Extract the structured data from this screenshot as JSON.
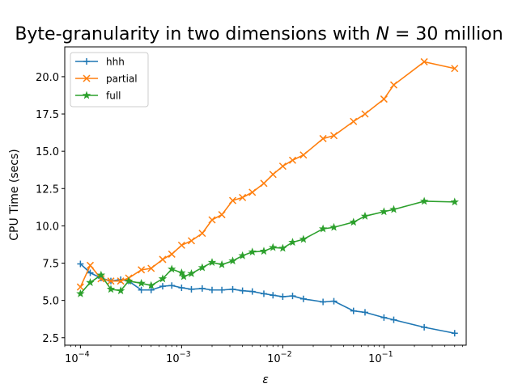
{
  "chart_data": {
    "type": "line",
    "title": "Byte-granularity in two dimensions with N = 30 million",
    "title_parts": {
      "prefix": "Byte-granularity in two dimensions with ",
      "var": "N",
      "suffix": " = 30 million"
    },
    "xlabel": "ε",
    "ylabel": "CPU Time (secs)",
    "xscale": "log",
    "xlim": [
      7e-05,
      0.65
    ],
    "ylim": [
      2.0,
      22.0
    ],
    "xticks": [
      {
        "value": 0.0001,
        "base": "10",
        "exp": "−4"
      },
      {
        "value": 0.001,
        "base": "10",
        "exp": "−3"
      },
      {
        "value": 0.01,
        "base": "10",
        "exp": "−2"
      },
      {
        "value": 0.1,
        "base": "10",
        "exp": "−1"
      }
    ],
    "yticks": [
      {
        "value": 2.5,
        "label": "2.5"
      },
      {
        "value": 5.0,
        "label": "5.0"
      },
      {
        "value": 7.5,
        "label": "7.5"
      },
      {
        "value": 10.0,
        "label": "10.0"
      },
      {
        "value": 12.5,
        "label": "12.5"
      },
      {
        "value": 15.0,
        "label": "15.0"
      },
      {
        "value": 17.5,
        "label": "17.5"
      },
      {
        "value": 20.0,
        "label": "20.0"
      }
    ],
    "grid": false,
    "legend_position": "top-left",
    "series": [
      {
        "name": "hhh",
        "color": "#1f77b4",
        "marker": "plus",
        "points": [
          [
            0.0001,
            7.45
          ],
          [
            0.000125,
            6.85
          ],
          [
            0.00016,
            6.5
          ],
          [
            0.0002,
            6.3
          ],
          [
            0.00025,
            6.4
          ],
          [
            0.0003,
            6.3
          ],
          [
            0.0004,
            5.7
          ],
          [
            0.0005,
            5.7
          ],
          [
            0.00065,
            5.95
          ],
          [
            0.0008,
            6.0
          ],
          [
            0.001,
            5.85
          ],
          [
            0.00125,
            5.75
          ],
          [
            0.0016,
            5.8
          ],
          [
            0.002,
            5.7
          ],
          [
            0.0025,
            5.7
          ],
          [
            0.0032,
            5.75
          ],
          [
            0.004,
            5.65
          ],
          [
            0.005,
            5.6
          ],
          [
            0.0065,
            5.45
          ],
          [
            0.008,
            5.35
          ],
          [
            0.01,
            5.25
          ],
          [
            0.0125,
            5.3
          ],
          [
            0.016,
            5.1
          ],
          [
            0.025,
            4.9
          ],
          [
            0.032,
            4.95
          ],
          [
            0.05,
            4.3
          ],
          [
            0.065,
            4.2
          ],
          [
            0.1,
            3.85
          ],
          [
            0.125,
            3.7
          ],
          [
            0.25,
            3.2
          ],
          [
            0.5,
            2.8
          ]
        ]
      },
      {
        "name": "partial",
        "color": "#ff7f0e",
        "marker": "x",
        "points": [
          [
            0.0001,
            5.9
          ],
          [
            0.000125,
            7.35
          ],
          [
            0.00016,
            6.45
          ],
          [
            0.0002,
            6.3
          ],
          [
            0.00025,
            6.3
          ],
          [
            0.0003,
            6.5
          ],
          [
            0.0004,
            7.05
          ],
          [
            0.0005,
            7.15
          ],
          [
            0.00065,
            7.75
          ],
          [
            0.0008,
            8.1
          ],
          [
            0.001,
            8.7
          ],
          [
            0.00125,
            9.0
          ],
          [
            0.0016,
            9.5
          ],
          [
            0.002,
            10.4
          ],
          [
            0.0025,
            10.75
          ],
          [
            0.0032,
            11.7
          ],
          [
            0.004,
            11.9
          ],
          [
            0.005,
            12.25
          ],
          [
            0.0065,
            12.85
          ],
          [
            0.008,
            13.45
          ],
          [
            0.01,
            14.0
          ],
          [
            0.0125,
            14.4
          ],
          [
            0.016,
            14.75
          ],
          [
            0.025,
            15.85
          ],
          [
            0.032,
            16.05
          ],
          [
            0.05,
            17.0
          ],
          [
            0.065,
            17.5
          ],
          [
            0.1,
            18.5
          ],
          [
            0.125,
            19.45
          ],
          [
            0.25,
            21.0
          ],
          [
            0.5,
            20.55
          ]
        ]
      },
      {
        "name": "full",
        "color": "#2ca02c",
        "marker": "star",
        "points": [
          [
            0.0001,
            5.45
          ],
          [
            0.000125,
            6.2
          ],
          [
            0.00016,
            6.7
          ],
          [
            0.0002,
            5.75
          ],
          [
            0.00025,
            5.65
          ],
          [
            0.0003,
            6.3
          ],
          [
            0.0004,
            6.15
          ],
          [
            0.0005,
            6.0
          ],
          [
            0.00065,
            6.45
          ],
          [
            0.0008,
            7.1
          ],
          [
            0.001,
            6.85
          ],
          [
            0.00105,
            6.6
          ],
          [
            0.00125,
            6.8
          ],
          [
            0.0016,
            7.2
          ],
          [
            0.002,
            7.55
          ],
          [
            0.0025,
            7.4
          ],
          [
            0.0032,
            7.65
          ],
          [
            0.004,
            8.0
          ],
          [
            0.005,
            8.25
          ],
          [
            0.0065,
            8.3
          ],
          [
            0.008,
            8.55
          ],
          [
            0.01,
            8.5
          ],
          [
            0.0125,
            8.9
          ],
          [
            0.016,
            9.1
          ],
          [
            0.025,
            9.8
          ],
          [
            0.032,
            9.9
          ],
          [
            0.05,
            10.25
          ],
          [
            0.065,
            10.65
          ],
          [
            0.1,
            10.95
          ],
          [
            0.125,
            11.1
          ],
          [
            0.25,
            11.65
          ],
          [
            0.5,
            11.6
          ]
        ]
      }
    ]
  }
}
